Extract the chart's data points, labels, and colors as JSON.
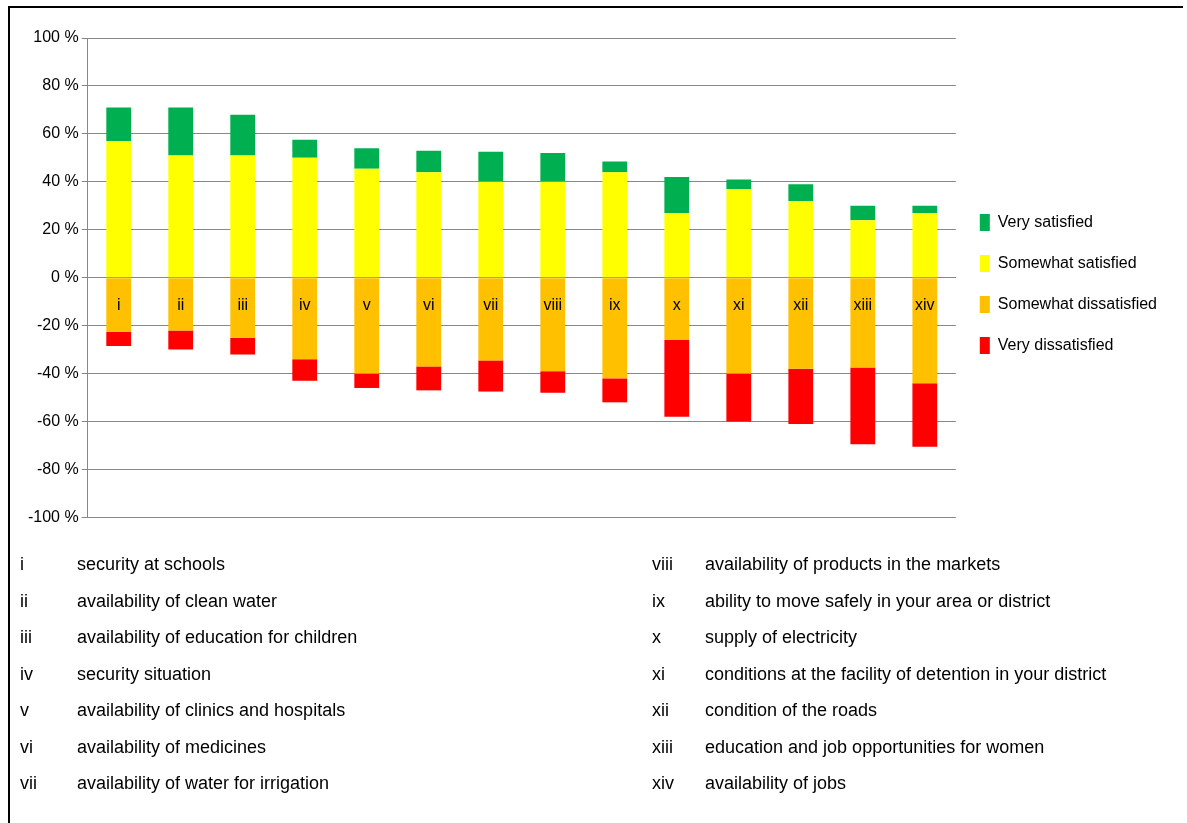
{
  "chart_data": {
    "type": "bar",
    "stacked": true,
    "categories": [
      "i",
      "ii",
      "iii",
      "iv",
      "v",
      "vi",
      "vii",
      "viii",
      "ix",
      "x",
      "xi",
      "xii",
      "xiii",
      "xiv"
    ],
    "series": [
      {
        "name": "Somewhat satisfied",
        "color": "#ffff00",
        "values": [
          57,
          51,
          51,
          50,
          45.5,
          44,
          40,
          40,
          44,
          27,
          37,
          32,
          24,
          27
        ]
      },
      {
        "name": "Very satisfied",
        "color": "#00b050",
        "values": [
          14,
          20,
          17,
          7.5,
          8.5,
          9,
          12.5,
          12,
          4.5,
          15,
          4,
          7,
          6,
          3
        ]
      },
      {
        "name": "Somewhat dissatisfied",
        "color": "#ffc000",
        "values": [
          -22.5,
          -22,
          -25,
          -34,
          -40,
          -37,
          -34.5,
          -39,
          -42,
          -26,
          -40,
          -38,
          -37.5,
          -44
        ]
      },
      {
        "name": "Very dissatisfied",
        "color": "#ff0000",
        "values": [
          -6,
          -8,
          -7,
          -9,
          -6,
          -10,
          -13,
          -9,
          -10,
          -32,
          -20,
          -23,
          -32,
          -26.5
        ]
      }
    ],
    "ylim": [
      -100,
      100
    ],
    "yticks": [
      {
        "value": -100,
        "label": "-100 %"
      },
      {
        "value": -80,
        "label": "-80 %"
      },
      {
        "value": -60,
        "label": "-60 %"
      },
      {
        "value": -40,
        "label": "-40 %"
      },
      {
        "value": -20,
        "label": "-20 %"
      },
      {
        "value": 0,
        "label": "0 %"
      },
      {
        "value": 20,
        "label": "20 %"
      },
      {
        "value": 40,
        "label": "40 %"
      },
      {
        "value": 60,
        "label": "60 %"
      },
      {
        "value": 80,
        "label": "80 %"
      },
      {
        "value": 100,
        "label": "100 %"
      }
    ],
    "grid": "y",
    "legend": "right",
    "annotations": [
      "i security at schools",
      "ii availability of clean water",
      "iii availability of education for children",
      "iv security situation",
      "v availability of clinics and hospitals",
      "vi availability of medicines",
      "vii availability of water for irrigation",
      "viii availability of products in the markets",
      "ix ability to move safely in your area or district",
      "x supply of electricity",
      "xi conditions at the facility of detention in your district",
      "xii condition of the roads",
      "xiii education and job opportunities for women",
      "xiv availability of jobs"
    ]
  }
}
